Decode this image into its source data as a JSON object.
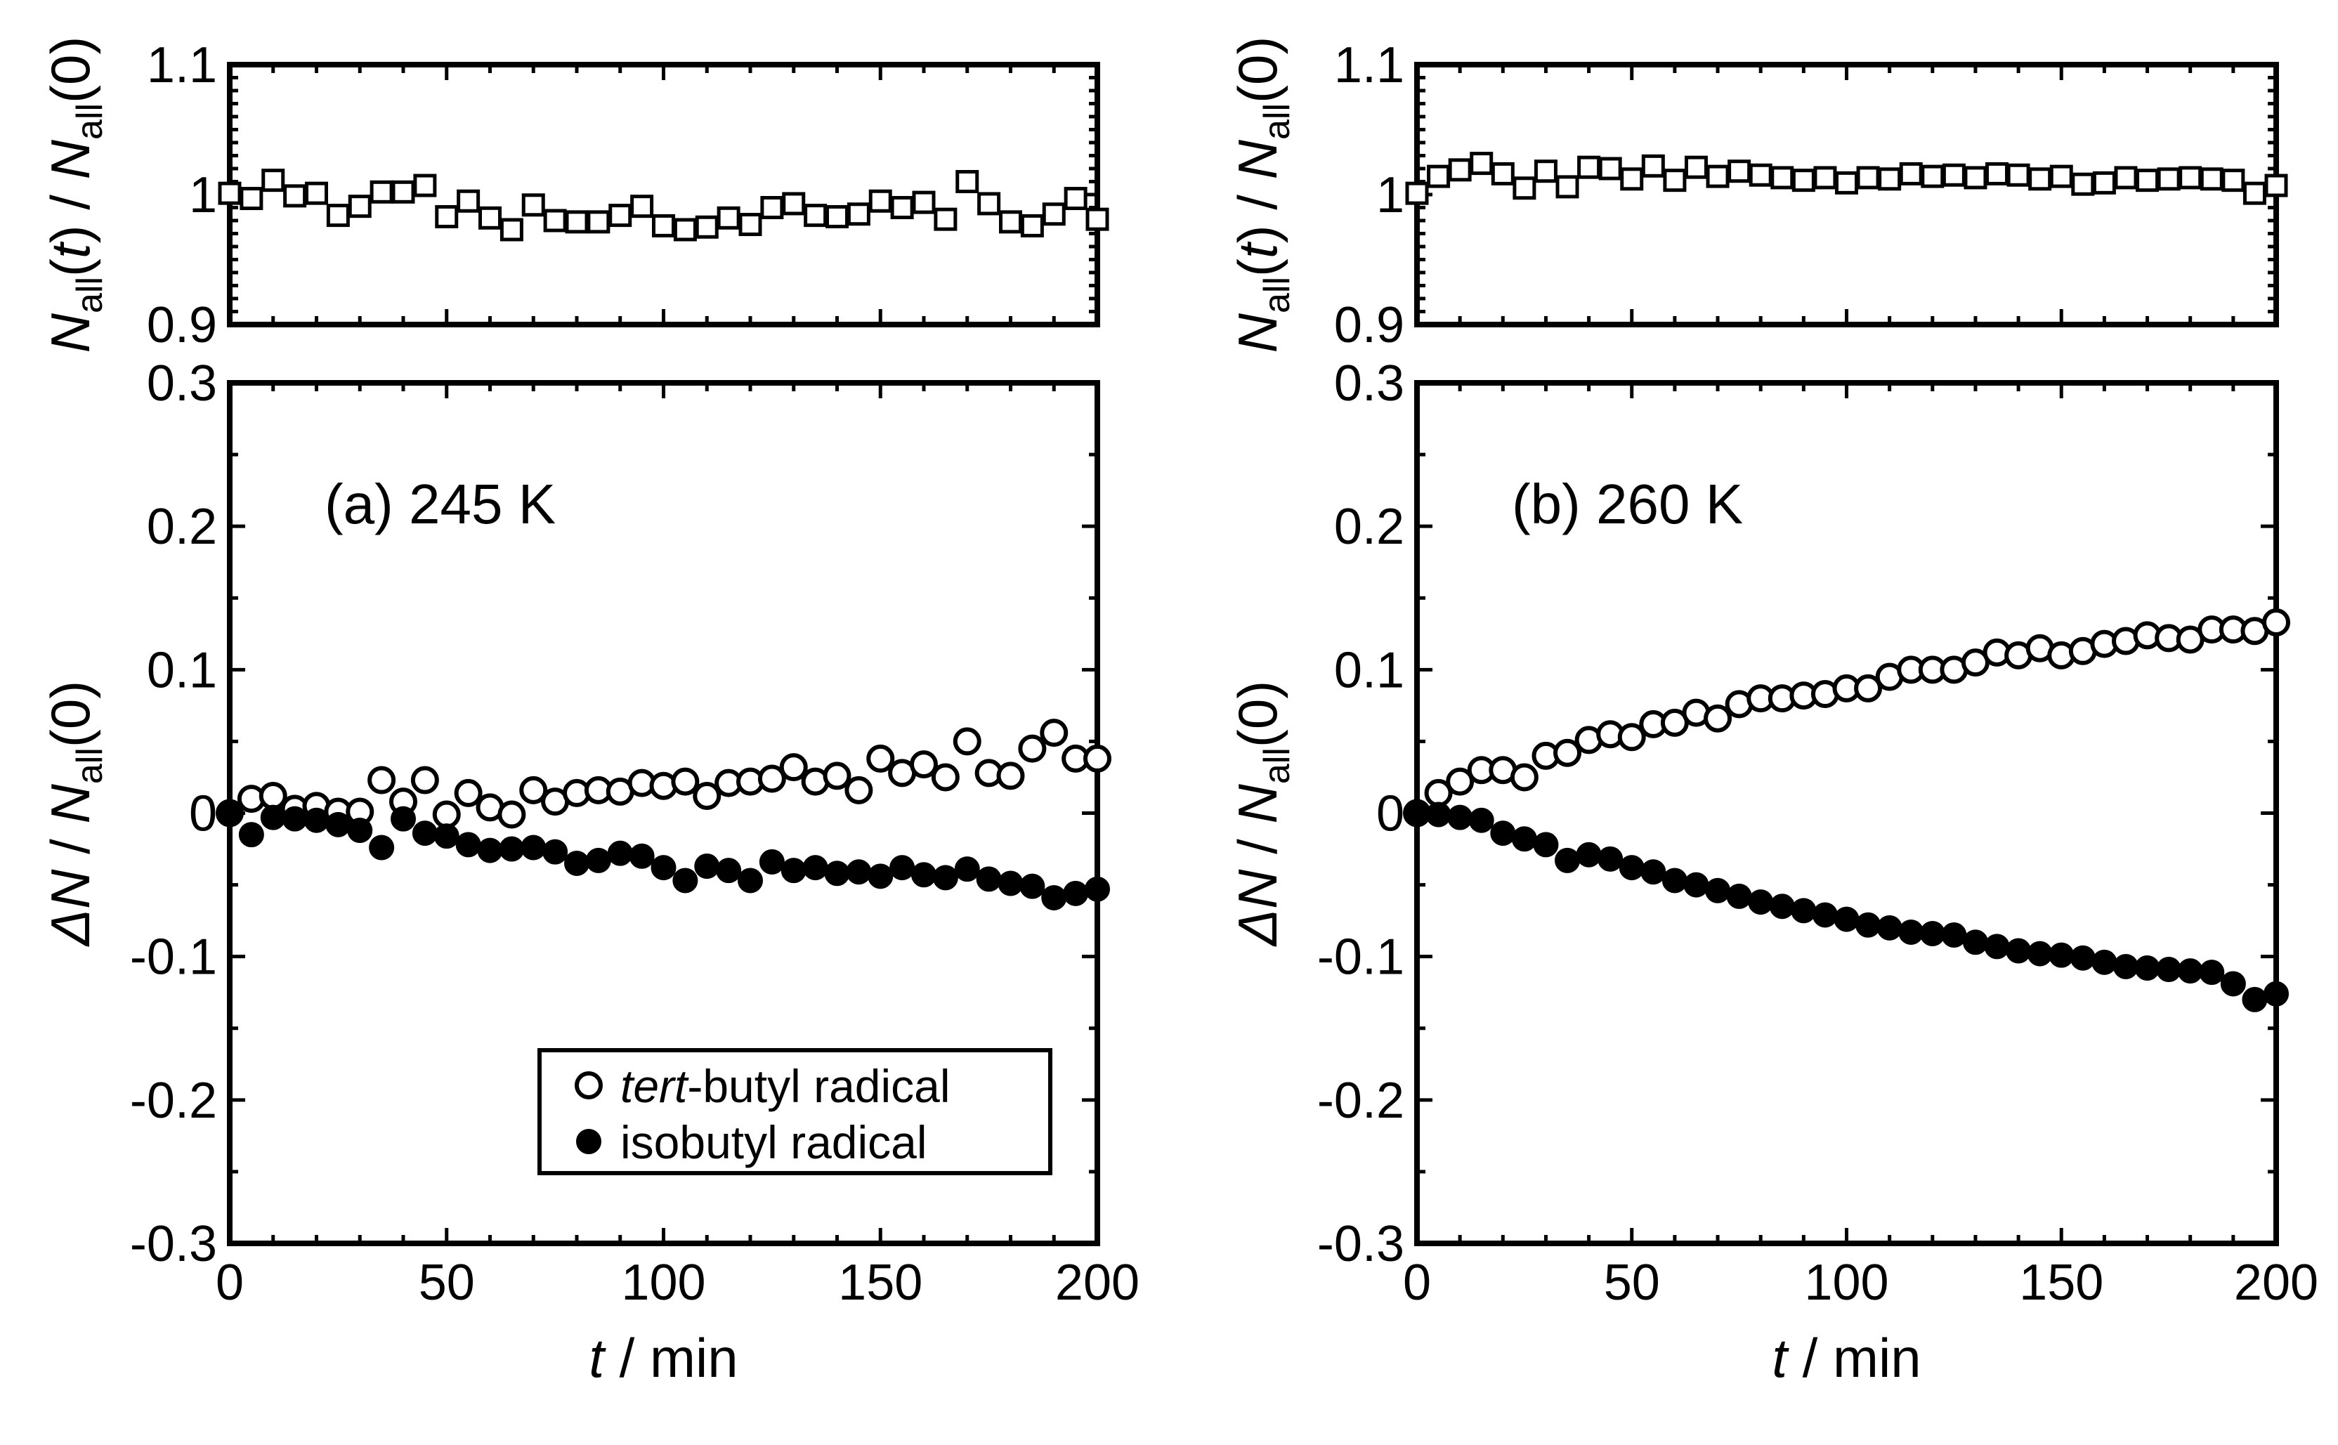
{
  "chart_data": [
    {
      "type": "scatter",
      "panel_label": "(a) 245 K",
      "x_label": {
        "italic": "t",
        "rest": " / min"
      },
      "top": {
        "ylabel": {
          "n1": "N",
          "sub1": "all",
          "t": "(t)",
          "sep": " /",
          "n2": "N",
          "sub2": "all",
          "tail": "(0)"
        },
        "ylim": [
          0.9,
          1.1
        ],
        "yticks": [
          0.9,
          1,
          1.1
        ],
        "yticklabels": [
          "0.9",
          "1",
          "1.1"
        ],
        "series": [
          {
            "name": "N_all(t)/N_all(0)",
            "marker": "open-square",
            "x": [
              0,
              5,
              10,
              15,
              20,
              25,
              30,
              35,
              40,
              45,
              50,
              55,
              60,
              65,
              70,
              75,
              80,
              85,
              90,
              95,
              100,
              105,
              110,
              115,
              120,
              125,
              130,
              135,
              140,
              145,
              150,
              155,
              160,
              165,
              170,
              175,
              180,
              185,
              190,
              195,
              200
            ],
            "y": [
              1.001,
              0.997,
              1.011,
              0.999,
              1.001,
              0.984,
              0.991,
              1.002,
              1.002,
              1.007,
              0.983,
              0.995,
              0.982,
              0.973,
              0.992,
              0.98,
              0.979,
              0.979,
              0.984,
              0.991,
              0.976,
              0.973,
              0.975,
              0.982,
              0.977,
              0.99,
              0.993,
              0.984,
              0.983,
              0.985,
              0.995,
              0.99,
              0.994,
              0.981,
              1.01,
              0.993,
              0.979,
              0.976,
              0.985,
              0.997,
              0.981
            ]
          }
        ]
      },
      "bottom": {
        "ylabel": {
          "delta": "ΔN",
          "sep": " / ",
          "n": "N",
          "sub": "all",
          "tail": "(0)"
        },
        "ylim": [
          -0.3,
          0.3
        ],
        "yticks": [
          -0.3,
          -0.2,
          -0.1,
          0,
          0.1,
          0.2,
          0.3
        ],
        "yticklabels": [
          "-0.3",
          "-0.2",
          "-0.1",
          "0",
          "0.1",
          "0.2",
          "0.3"
        ],
        "series": [
          {
            "name": "tert-butyl radical",
            "marker": "open-circle",
            "x": [
              0,
              5,
              10,
              15,
              20,
              25,
              30,
              35,
              40,
              45,
              50,
              55,
              60,
              65,
              70,
              75,
              80,
              85,
              90,
              95,
              100,
              105,
              110,
              115,
              120,
              125,
              130,
              135,
              140,
              145,
              150,
              155,
              160,
              165,
              170,
              175,
              180,
              185,
              190,
              195,
              200
            ],
            "y": [
              0,
              0.01,
              0.012,
              0.003,
              0.005,
              0.001,
              0.001,
              0.023,
              0.008,
              0.023,
              -0.001,
              0.014,
              0.004,
              -0.001,
              0.016,
              0.008,
              0.014,
              0.016,
              0.015,
              0.021,
              0.019,
              0.022,
              0.012,
              0.021,
              0.022,
              0.024,
              0.032,
              0.022,
              0.026,
              0.016,
              0.038,
              0.028,
              0.034,
              0.025,
              0.05,
              0.028,
              0.026,
              0.045,
              0.056,
              0.038,
              0.038
            ]
          },
          {
            "name": "isobutyl radical",
            "marker": "filled-circle",
            "x": [
              0,
              5,
              10,
              15,
              20,
              25,
              30,
              35,
              40,
              45,
              50,
              55,
              60,
              65,
              70,
              75,
              80,
              85,
              90,
              95,
              100,
              105,
              110,
              115,
              120,
              125,
              130,
              135,
              140,
              145,
              150,
              155,
              160,
              165,
              170,
              175,
              180,
              185,
              190,
              195,
              200
            ],
            "y": [
              0,
              -0.015,
              -0.003,
              -0.004,
              -0.005,
              -0.008,
              -0.012,
              -0.024,
              -0.004,
              -0.014,
              -0.016,
              -0.022,
              -0.026,
              -0.025,
              -0.024,
              -0.027,
              -0.035,
              -0.033,
              -0.028,
              -0.03,
              -0.038,
              -0.047,
              -0.037,
              -0.04,
              -0.047,
              -0.034,
              -0.04,
              -0.038,
              -0.042,
              -0.041,
              -0.044,
              -0.038,
              -0.043,
              -0.045,
              -0.039,
              -0.046,
              -0.049,
              -0.051,
              -0.059,
              -0.056,
              -0.053
            ]
          }
        ]
      },
      "x": {
        "lim": [
          0,
          200
        ],
        "ticks": [
          0,
          50,
          100,
          150,
          200
        ],
        "ticklabels": [
          "0",
          "50",
          "100",
          "150",
          "200"
        ]
      },
      "legend": {
        "location": "lower-right",
        "entries": [
          {
            "italic": "tert",
            "text": "-butyl radical",
            "marker": "open-circle"
          },
          {
            "italic": "",
            "text": "isobutyl radical",
            "marker": "filled-circle"
          }
        ]
      }
    },
    {
      "type": "scatter",
      "panel_label": "(b) 260 K",
      "x_label": {
        "italic": "t",
        "rest": " / min"
      },
      "top": {
        "ylabel": {
          "n1": "N",
          "sub1": "all",
          "t": "(t)",
          "sep": " /",
          "n2": "N",
          "sub2": "all",
          "tail": "(0)"
        },
        "ylim": [
          0.9,
          1.1
        ],
        "yticks": [
          0.9,
          1,
          1.1
        ],
        "yticklabels": [
          "0.9",
          "1",
          "1.1"
        ],
        "series": [
          {
            "name": "N_all(t)/N_all(0)",
            "marker": "open-square",
            "x": [
              0,
              5,
              10,
              15,
              20,
              25,
              30,
              35,
              40,
              45,
              50,
              55,
              60,
              65,
              70,
              75,
              80,
              85,
              90,
              95,
              100,
              105,
              110,
              115,
              120,
              125,
              130,
              135,
              140,
              145,
              150,
              155,
              160,
              165,
              170,
              175,
              180,
              185,
              190,
              195,
              200
            ],
            "y": [
              1.001,
              1.014,
              1.019,
              1.024,
              1.016,
              1.005,
              1.018,
              1.006,
              1.021,
              1.02,
              1.012,
              1.022,
              1.011,
              1.021,
              1.014,
              1.018,
              1.015,
              1.013,
              1.011,
              1.013,
              1.009,
              1.013,
              1.012,
              1.016,
              1.014,
              1.015,
              1.013,
              1.016,
              1.015,
              1.012,
              1.014,
              1.008,
              1.009,
              1.013,
              1.011,
              1.012,
              1.013,
              1.012,
              1.011,
              1.001,
              1.007
            ]
          }
        ]
      },
      "bottom": {
        "ylabel": {
          "delta": "ΔN",
          "sep": " / ",
          "n": "N",
          "sub": "all",
          "tail": "(0)"
        },
        "ylim": [
          -0.3,
          0.3
        ],
        "yticks": [
          -0.3,
          -0.2,
          -0.1,
          0,
          0.1,
          0.2,
          0.3
        ],
        "yticklabels": [
          "-0.3",
          "-0.2",
          "-0.1",
          "0",
          "0.1",
          "0.2",
          "0.3"
        ],
        "series": [
          {
            "name": "tert-butyl radical",
            "marker": "open-circle",
            "x": [
              0,
              5,
              10,
              15,
              20,
              25,
              30,
              35,
              40,
              45,
              50,
              55,
              60,
              65,
              70,
              75,
              80,
              85,
              90,
              95,
              100,
              105,
              110,
              115,
              120,
              125,
              130,
              135,
              140,
              145,
              150,
              155,
              160,
              165,
              170,
              175,
              180,
              185,
              190,
              195,
              200
            ],
            "y": [
              0,
              0.014,
              0.022,
              0.03,
              0.03,
              0.025,
              0.04,
              0.042,
              0.051,
              0.055,
              0.053,
              0.062,
              0.063,
              0.07,
              0.066,
              0.076,
              0.08,
              0.08,
              0.082,
              0.083,
              0.087,
              0.087,
              0.095,
              0.1,
              0.1,
              0.1,
              0.105,
              0.112,
              0.11,
              0.115,
              0.11,
              0.113,
              0.118,
              0.12,
              0.124,
              0.122,
              0.121,
              0.128,
              0.128,
              0.127,
              0.133
            ]
          },
          {
            "name": "isobutyl radical",
            "marker": "filled-circle",
            "x": [
              0,
              5,
              10,
              15,
              20,
              25,
              30,
              35,
              40,
              45,
              50,
              55,
              60,
              65,
              70,
              75,
              80,
              85,
              90,
              95,
              100,
              105,
              110,
              115,
              120,
              125,
              130,
              135,
              140,
              145,
              150,
              155,
              160,
              165,
              170,
              175,
              180,
              185,
              190,
              195,
              200
            ],
            "y": [
              0,
              -0.001,
              -0.003,
              -0.005,
              -0.014,
              -0.018,
              -0.022,
              -0.033,
              -0.029,
              -0.032,
              -0.038,
              -0.041,
              -0.047,
              -0.05,
              -0.054,
              -0.058,
              -0.062,
              -0.065,
              -0.068,
              -0.071,
              -0.074,
              -0.078,
              -0.08,
              -0.083,
              -0.084,
              -0.085,
              -0.09,
              -0.093,
              -0.096,
              -0.098,
              -0.099,
              -0.101,
              -0.104,
              -0.107,
              -0.108,
              -0.109,
              -0.11,
              -0.111,
              -0.119,
              -0.13,
              -0.126
            ]
          }
        ]
      },
      "x": {
        "lim": [
          0,
          200
        ],
        "ticks": [
          0,
          50,
          100,
          150,
          200
        ],
        "ticklabels": [
          "0",
          "50",
          "100",
          "150",
          "200"
        ]
      }
    }
  ]
}
